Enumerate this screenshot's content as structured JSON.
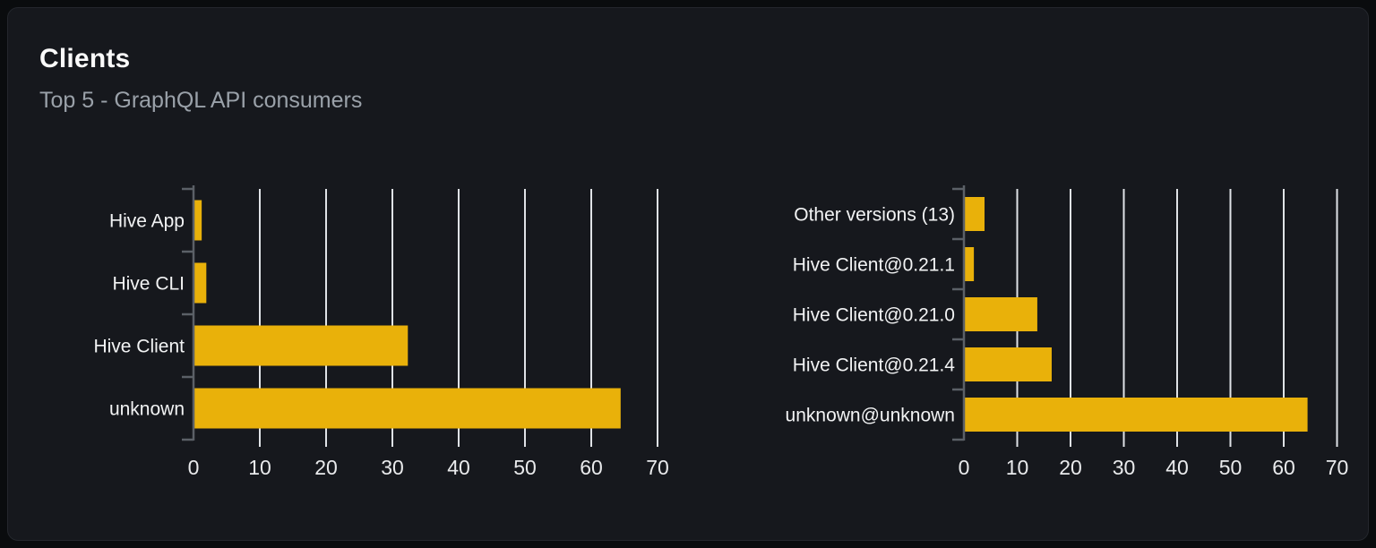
{
  "card": {
    "title": "Clients",
    "subtitle": "Top 5 - GraphQL API consumers"
  },
  "colors": {
    "page_bg": "#0a0c0e",
    "card_bg": "#16181d",
    "card_border": "#24272d",
    "bar": "#e9b10a",
    "gridline": "#dfe2e6",
    "axis": "#5b6067",
    "title": "#fafafa",
    "subtitle": "#9aa1a9",
    "category_label": "#f2f3f4",
    "tick_label": "#e9eaec"
  },
  "chart_data": [
    {
      "type": "bar",
      "orientation": "horizontal",
      "categories": [
        "Hive App",
        "Hive CLI",
        "Hive Client",
        "unknown"
      ],
      "values": [
        1.1,
        1.8,
        32.2,
        64.3
      ],
      "xlim": [
        0,
        70
      ],
      "xticks": [
        0,
        10,
        20,
        30,
        40,
        50,
        60,
        70
      ],
      "grid": true,
      "legend": false
    },
    {
      "type": "bar",
      "orientation": "horizontal",
      "categories": [
        "Other versions (13)",
        "Hive Client@0.21.1",
        "Hive Client@0.21.0",
        "Hive Client@0.21.4",
        "unknown@unknown"
      ],
      "values": [
        3.7,
        1.7,
        13.6,
        16.3,
        64.3
      ],
      "xlim": [
        0,
        70
      ],
      "xticks": [
        0,
        10,
        20,
        30,
        40,
        50,
        60,
        70
      ],
      "grid": true,
      "legend": false
    }
  ]
}
